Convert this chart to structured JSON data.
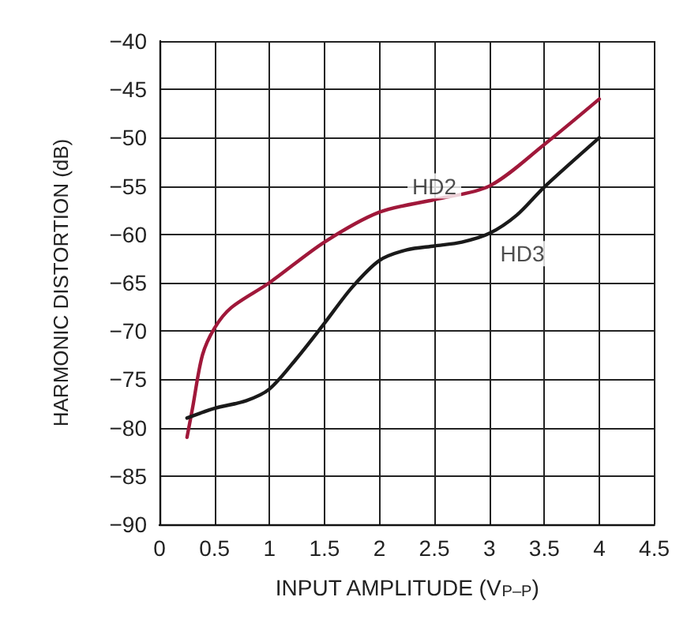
{
  "chart_data": {
    "type": "line",
    "xlabel": "INPUT AMPLITUDE (V$_{P–P}$)",
    "ylabel": "HARMONIC DISTORTION (dB)",
    "xlim": [
      0,
      4.5
    ],
    "xticks": [
      0,
      0.5,
      1,
      1.5,
      2,
      2.5,
      3,
      3.5,
      4,
      4.5
    ],
    "ylim": [
      -90,
      -40
    ],
    "yticks": [
      -90,
      -85,
      -80,
      -75,
      -70,
      -65,
      -60,
      -55,
      -50,
      -45,
      -40
    ],
    "grid": true,
    "marker": "none",
    "line_style": "solid",
    "series": [
      {
        "color": "#a0183a",
        "x": [
          0.25,
          0.3,
          0.39,
          0.5,
          0.65,
          1,
          1.5,
          2,
          2.5,
          3,
          3.5,
          4
        ],
        "values": [
          -81,
          -78,
          -72.5,
          -69.7,
          -67.6,
          -65,
          -60.8,
          -57.7,
          -56.4,
          -55,
          -50.7,
          -46
        ]
      },
      {
        "color": "#1a1a1a",
        "x": [
          0.25,
          0.5,
          0.79,
          1,
          1.25,
          1.5,
          1.75,
          2,
          2.25,
          2.5,
          2.75,
          3,
          3.25,
          3.5,
          4
        ],
        "values": [
          -79,
          -78,
          -77.2,
          -76,
          -72.8,
          -69.2,
          -65.5,
          -62.7,
          -61.6,
          -61.2,
          -60.8,
          -59.9,
          -58,
          -55.1,
          -50
        ]
      }
    ],
    "annotations": [
      {
        "text": "HD2",
        "x": 2.5,
        "y": -55
      },
      {
        "text": "HD3",
        "x": 3.3,
        "y": -62
      }
    ]
  }
}
